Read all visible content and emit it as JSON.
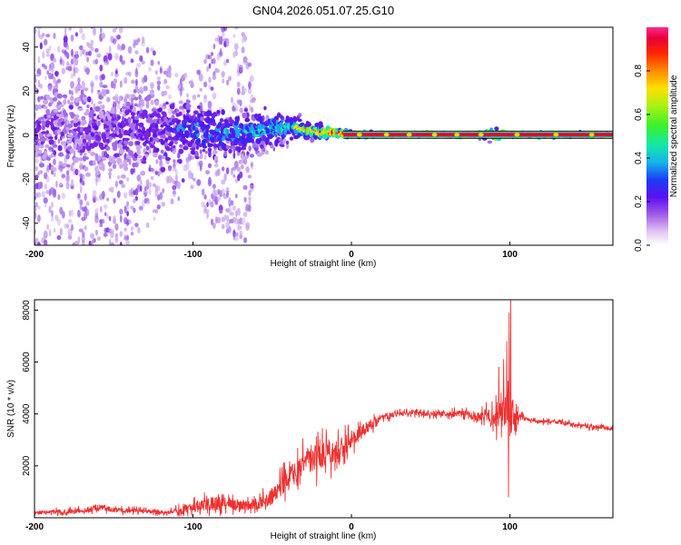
{
  "title": "GN04.2026.051.07.25.G10",
  "colors": {
    "spectrum": [
      "#e2d0f2",
      "#c9a6ef",
      "#a26ce9",
      "#7a22e6",
      "#5b16ee",
      "#2f2cf4",
      "#1aa2f0",
      "#14e6b4",
      "#8ef01c",
      "#ffd800",
      "#ff5a00",
      "#e8002e",
      "#ff2a8a"
    ],
    "snr_line": "#ee3030",
    "ridge_band": "#000000"
  },
  "chart_data": [
    {
      "type": "heatmap",
      "name": "spectrogram",
      "xlabel": "Height of straight line (km)",
      "ylabel": "Frequency (Hz)",
      "xlim": [
        -200,
        165
      ],
      "ylim": [
        -50,
        49
      ],
      "xticks": [
        -200,
        -100,
        0,
        100
      ],
      "xtick_labels": [
        "-200",
        "-100",
        "0",
        "100"
      ],
      "yticks": [
        -40,
        -20,
        0,
        20,
        40
      ],
      "ytick_labels": [
        "-40",
        "-20",
        "0",
        "20",
        "40"
      ],
      "ridge": {
        "x": [
          -200,
          -150,
          -120,
          -100,
          -80,
          -60,
          -45,
          -38,
          -30,
          -20,
          -10,
          0,
          20,
          50,
          80,
          90,
          100,
          130,
          165
        ],
        "y": [
          3,
          3,
          3,
          2,
          1.5,
          2,
          3.5,
          4,
          2.5,
          1.5,
          1,
          0.5,
          0.3,
          0.2,
          0.1,
          0.2,
          0.2,
          0.2,
          0.2
        ],
        "amplitude": [
          0.18,
          0.22,
          0.3,
          0.4,
          0.45,
          0.5,
          0.55,
          0.62,
          0.7,
          0.8,
          0.85,
          0.92,
          0.95,
          0.96,
          0.95,
          0.9,
          0.95,
          0.95,
          0.95
        ],
        "spread_hz": [
          20,
          20,
          18,
          15,
          12,
          10,
          7,
          5,
          4,
          3,
          2,
          1.5,
          1,
          1,
          1,
          3,
          1,
          1,
          1
        ]
      },
      "noise_extent": {
        "x": [
          -200,
          -170,
          -140,
          -120,
          -100,
          -80,
          -67,
          -60,
          -40
        ],
        "y_halfwidth": [
          50,
          50,
          50,
          35,
          25,
          50,
          50,
          10,
          5
        ]
      },
      "colorbar": {
        "label": "Normalized spectral amplitude",
        "range": [
          0,
          1
        ],
        "ticks": [
          0.0,
          0.2,
          0.4,
          0.6,
          0.8
        ],
        "tick_labels": [
          "0.0",
          "0.2",
          "0.4",
          "0.6",
          "0.8"
        ]
      }
    },
    {
      "type": "line",
      "name": "snr",
      "xlabel": "Height of straight line (km)",
      "ylabel": "SNR (10 * v/v)",
      "xlim": [
        -200,
        165
      ],
      "ylim": [
        0,
        8400
      ],
      "xticks": [
        -200,
        -100,
        0,
        100
      ],
      "xtick_labels": [
        "-200",
        "-100",
        "0",
        "100"
      ],
      "yticks": [
        2000,
        4000,
        6000,
        8000
      ],
      "ytick_labels": [
        "2000",
        "4000",
        "6000",
        "8000"
      ],
      "envelope": {
        "x": [
          -200,
          -170,
          -160,
          -150,
          -130,
          -115,
          -110,
          -100,
          -90,
          -80,
          -70,
          -60,
          -50,
          -40,
          -30,
          -20,
          -10,
          0,
          10,
          20,
          30,
          40,
          50,
          60,
          70,
          80,
          85,
          90,
          95,
          100,
          105,
          110,
          120,
          130,
          140,
          150,
          160,
          165
        ],
        "base": [
          200,
          250,
          400,
          300,
          250,
          200,
          280,
          400,
          500,
          600,
          450,
          500,
          800,
          1500,
          2000,
          2400,
          2600,
          3000,
          3500,
          3900,
          4000,
          4050,
          4000,
          4000,
          4000,
          3900,
          4000,
          3800,
          4100,
          3800,
          3900,
          3800,
          3700,
          3700,
          3600,
          3500,
          3500,
          3400
        ],
        "noise": [
          150,
          200,
          250,
          200,
          150,
          150,
          250,
          400,
          600,
          500,
          400,
          400,
          700,
          1000,
          1100,
          1100,
          1000,
          700,
          500,
          300,
          200,
          200,
          200,
          200,
          300,
          400,
          500,
          800,
          1200,
          2200,
          400,
          150,
          150,
          150,
          150,
          150,
          150,
          150
        ]
      },
      "spikes": [
        {
          "x": 93,
          "y": 5800
        },
        {
          "x": 96,
          "y": 6100
        },
        {
          "x": 98,
          "y": 6800
        },
        {
          "x": 99.5,
          "y": 7900
        },
        {
          "x": 100.5,
          "y": 8400
        },
        {
          "x": 99,
          "y": 800
        }
      ]
    }
  ]
}
